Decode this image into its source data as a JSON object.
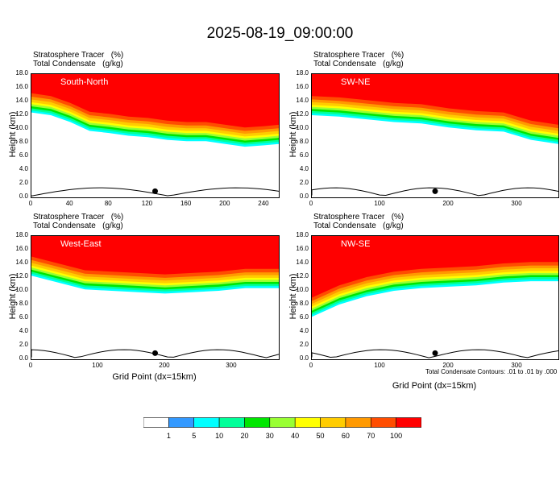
{
  "main_title": "2025-08-19_09:00:00",
  "panels": [
    {
      "header1": "Stratosphere Tracer   (%)",
      "header2": "Total Condensate   (g/kg)",
      "inset_label": "South-North",
      "ylabel": "Height (km)",
      "xlabel": "",
      "xticks": [
        "0",
        "40",
        "80",
        "120",
        "160",
        "200",
        "240"
      ],
      "xmax": 255
    },
    {
      "header1": "Stratosphere Tracer   (%)",
      "header2": "Total Condensate   (g/kg)",
      "inset_label": "SW-NE",
      "ylabel": "Height (km)",
      "xlabel": "",
      "xticks": [
        "0",
        "100",
        "200",
        "300"
      ],
      "xmax": 360
    },
    {
      "header1": "Stratosphere Tracer   (%)",
      "header2": "Total Condensate   (g/kg)",
      "inset_label": "West-East",
      "ylabel": "Height (km)",
      "xlabel": "Grid Point (dx=15km)",
      "xticks": [
        "0",
        "100",
        "200",
        "300"
      ],
      "xmax": 370
    },
    {
      "header1": "Stratosphere Tracer   (%)",
      "header2": "Total Condensate   (g/kg)",
      "inset_label": "NW-SE",
      "ylabel": "Height (km)",
      "xlabel": "Grid Point (dx=15km)",
      "xticks": [
        "0",
        "100",
        "200",
        "300"
      ],
      "xmax": 360
    }
  ],
  "yticks": [
    "0.0",
    "2.0",
    "4.0",
    "6.0",
    "8.0",
    "10.0",
    "12.0",
    "14.0",
    "16.0",
    "18.0"
  ],
  "contour_note": "Total Condensate Contours: .01 to .01 by .000",
  "colorbar": {
    "labels": [
      "1",
      "5",
      "10",
      "20",
      "30",
      "40",
      "50",
      "60",
      "70",
      "100"
    ],
    "colors": [
      "#ffffff",
      "#3399ff",
      "#00ffff",
      "#00ff99",
      "#00e600",
      "#99ff33",
      "#ffff00",
      "#ffcc00",
      "#ff9900",
      "#ff4d00",
      "#ff0000"
    ]
  },
  "chart_data": {
    "type": "heatmap",
    "title": "2025-08-19_09:00:00",
    "ylabel": "Height (km)",
    "xlabel": "Grid Point (dx=15km)",
    "ylim": [
      0,
      18
    ],
    "levels": [
      1,
      5,
      10,
      20,
      30,
      40,
      50,
      60,
      70,
      100
    ],
    "panels": [
      {
        "name": "South-North",
        "xlim": [
          0,
          255
        ],
        "tropopause_height_km": [
          15.2,
          14.8,
          13.8,
          12.5,
          12.2,
          11.8,
          11.6,
          11.2,
          11.0,
          11.0,
          10.6,
          10.2,
          10.4,
          10.6
        ],
        "tropopause_x": [
          0,
          20,
          40,
          60,
          80,
          100,
          120,
          140,
          160,
          180,
          200,
          220,
          240,
          255
        ]
      },
      {
        "name": "SW-NE",
        "xlim": [
          0,
          360
        ],
        "tropopause_height_km": [
          14.8,
          14.6,
          14.2,
          13.8,
          13.6,
          13.0,
          12.6,
          12.4,
          11.2,
          10.6
        ],
        "tropopause_x": [
          0,
          40,
          80,
          120,
          160,
          200,
          240,
          280,
          320,
          360
        ]
      },
      {
        "name": "West-East",
        "xlim": [
          0,
          370
        ],
        "tropopause_height_km": [
          15.0,
          14.0,
          13.0,
          12.8,
          12.6,
          12.4,
          12.6,
          12.8,
          13.2,
          13.2
        ],
        "tropopause_x": [
          0,
          40,
          80,
          120,
          160,
          200,
          240,
          280,
          320,
          370
        ]
      },
      {
        "name": "NW-SE",
        "xlim": [
          0,
          360
        ],
        "tropopause_height_km": [
          9.0,
          10.8,
          12.0,
          12.8,
          13.2,
          13.4,
          13.6,
          14.0,
          14.2,
          14.2
        ],
        "tropopause_x": [
          0,
          40,
          80,
          120,
          160,
          200,
          240,
          280,
          320,
          360
        ]
      }
    ]
  }
}
